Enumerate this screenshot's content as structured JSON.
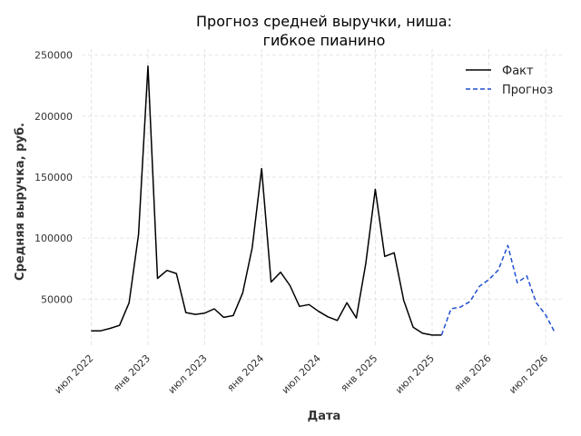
{
  "chart_data": {
    "type": "line",
    "title_lines": [
      "Прогноз средней выручки, ниша:",
      "гибкое пианино"
    ],
    "xlabel": "Дата",
    "ylabel": "Средняя выручка, руб.",
    "ylim": [
      10000,
      255000
    ],
    "xlim": [
      "2022-06",
      "2026-09"
    ],
    "yticks": [
      50000,
      100000,
      150000,
      200000,
      250000
    ],
    "ytick_labels": [
      "50000",
      "100000",
      "150000",
      "200000",
      "250000"
    ],
    "xticks": [
      "2022-07",
      "2023-01",
      "2023-07",
      "2024-01",
      "2024-07",
      "2025-01",
      "2025-07",
      "2026-01",
      "2026-07"
    ],
    "xtick_labels": [
      "июл 2022",
      "янв 2023",
      "июл 2023",
      "янв 2024",
      "июл 2024",
      "янв 2025",
      "июл 2025",
      "янв 2026",
      "июл 2026"
    ],
    "grid": true,
    "legend_position": "top-right",
    "series": [
      {
        "name": "Факт",
        "color": "#000000",
        "style": "solid",
        "points": [
          [
            "2022-07",
            24000
          ],
          [
            "2022-08",
            24000
          ],
          [
            "2022-09",
            26000
          ],
          [
            "2022-10",
            28500
          ],
          [
            "2022-11",
            47000
          ],
          [
            "2022-12",
            103000
          ],
          [
            "2023-01",
            241000
          ],
          [
            "2023-02",
            67000
          ],
          [
            "2023-03",
            73500
          ],
          [
            "2023-04",
            71000
          ],
          [
            "2023-05",
            39000
          ],
          [
            "2023-06",
            37500
          ],
          [
            "2023-07",
            38500
          ],
          [
            "2023-08",
            42000
          ],
          [
            "2023-09",
            35000
          ],
          [
            "2023-10",
            36500
          ],
          [
            "2023-11",
            55000
          ],
          [
            "2023-12",
            92000
          ],
          [
            "2024-01",
            157000
          ],
          [
            "2024-02",
            64000
          ],
          [
            "2024-03",
            72000
          ],
          [
            "2024-04",
            61000
          ],
          [
            "2024-05",
            44000
          ],
          [
            "2024-06",
            45500
          ],
          [
            "2024-07",
            40000
          ],
          [
            "2024-08",
            35500
          ],
          [
            "2024-09",
            32500
          ],
          [
            "2024-10",
            47000
          ],
          [
            "2024-11",
            34500
          ],
          [
            "2024-12",
            79000
          ],
          [
            "2025-01",
            140000
          ],
          [
            "2025-02",
            85000
          ],
          [
            "2025-03",
            88000
          ],
          [
            "2025-04",
            49000
          ],
          [
            "2025-05",
            27000
          ],
          [
            "2025-06",
            22000
          ],
          [
            "2025-07",
            20500
          ],
          [
            "2025-08",
            20500
          ]
        ]
      },
      {
        "name": "Прогноз",
        "color": "#1f4fd1",
        "style": "dashed",
        "points": [
          [
            "2025-08",
            20500
          ],
          [
            "2025-09",
            42000
          ],
          [
            "2025-10",
            43500
          ],
          [
            "2025-11",
            48000
          ],
          [
            "2025-12",
            60500
          ],
          [
            "2026-01",
            66000
          ],
          [
            "2026-02",
            74000
          ],
          [
            "2026-03",
            94000
          ],
          [
            "2026-04",
            63500
          ],
          [
            "2026-05",
            69000
          ],
          [
            "2026-06",
            47000
          ],
          [
            "2026-07",
            37000
          ],
          [
            "2026-08",
            22000
          ]
        ]
      }
    ]
  }
}
